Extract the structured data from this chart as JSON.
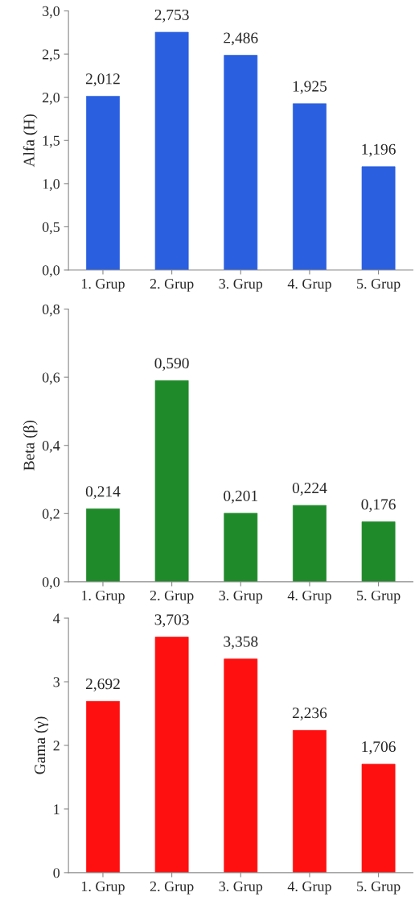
{
  "chart_data": [
    {
      "type": "bar",
      "ylabel": "Alfa (H)",
      "categories": [
        "1. Grup",
        "2. Grup",
        "3. Grup",
        "4. Grup",
        "5. Grup"
      ],
      "values": [
        2.012,
        2.753,
        2.486,
        1.925,
        1.196
      ],
      "color": "#2a5fe0",
      "value_labels": [
        "2,012",
        "2,753",
        "2,486",
        "1,925",
        "1,196"
      ],
      "ylim": [
        0,
        3
      ],
      "yticks": [
        {
          "value": 0,
          "label": "0,0"
        },
        {
          "value": 0.5,
          "label": "0,5"
        },
        {
          "value": 1,
          "label": "1,0"
        },
        {
          "value": 1.5,
          "label": "1,5"
        },
        {
          "value": 2,
          "label": "2,0"
        },
        {
          "value": 2.5,
          "label": "2,5"
        },
        {
          "value": 3,
          "label": "3,0"
        }
      ],
      "grid": false
    },
    {
      "type": "bar",
      "ylabel": "Beta (β)",
      "categories": [
        "1. Grup",
        "2. Grup",
        "3. Grup",
        "4. Grup",
        "5. Grup"
      ],
      "values": [
        0.214,
        0.59,
        0.201,
        0.224,
        0.176
      ],
      "color": "#1f8a2a",
      "value_labels": [
        "0,214",
        "0,590",
        "0,201",
        "0,224",
        "0,176"
      ],
      "ylim": [
        0,
        0.8
      ],
      "yticks": [
        {
          "value": 0,
          "label": "0,0"
        },
        {
          "value": 0.2,
          "label": "0,2"
        },
        {
          "value": 0.4,
          "label": "0,4"
        },
        {
          "value": 0.6,
          "label": "0,6"
        },
        {
          "value": 0.8,
          "label": "0,8"
        }
      ],
      "grid": false
    },
    {
      "type": "bar",
      "ylabel": "Gama (γ)",
      "categories": [
        "1. Grup",
        "2. Grup",
        "3. Grup",
        "4. Grup",
        "5. Grup"
      ],
      "values": [
        2.692,
        3.703,
        3.358,
        2.236,
        1.706
      ],
      "color": "#ff1010",
      "value_labels": [
        "2,692",
        "3,703",
        "3,358",
        "2,236",
        "1,706"
      ],
      "ylim": [
        0,
        4
      ],
      "yticks": [
        0,
        1,
        2,
        3,
        4
      ],
      "grid": false
    }
  ]
}
